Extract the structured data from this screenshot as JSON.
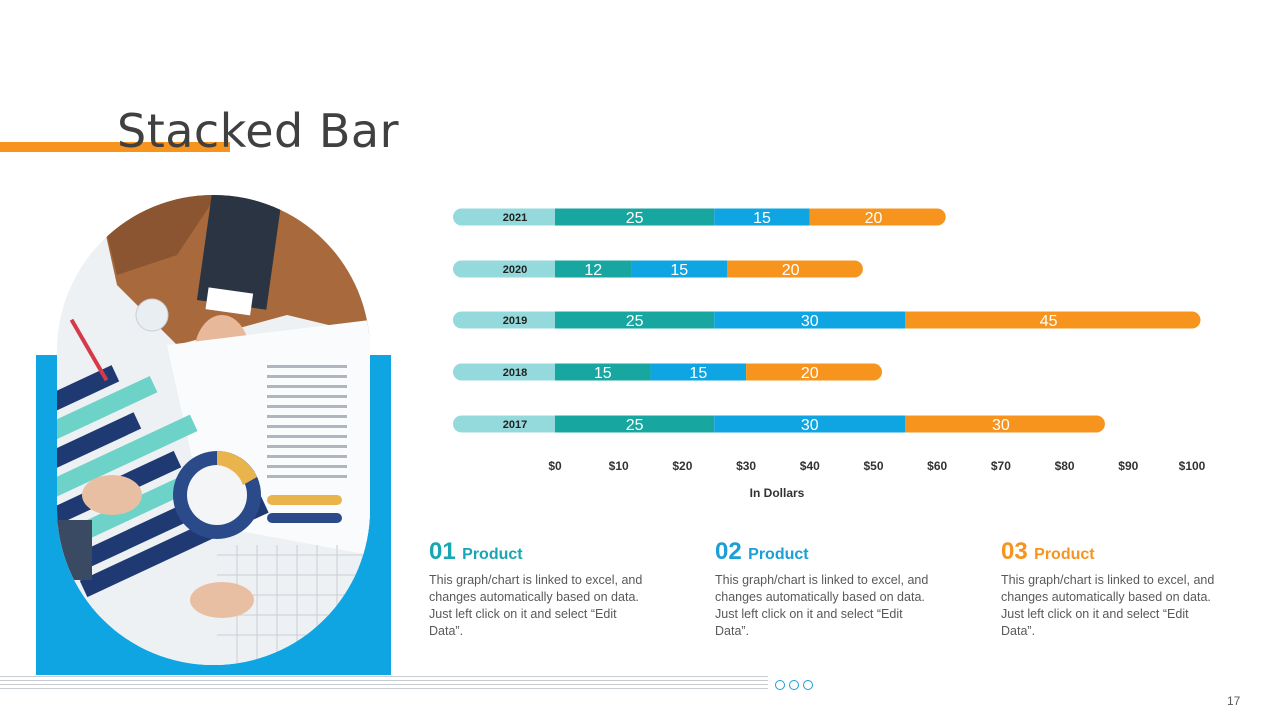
{
  "slide": {
    "title": "Stacked Bar",
    "page_number": "17"
  },
  "colors": {
    "accent_orange": "#F7941D",
    "series_1": "#17A7A0",
    "series_2": "#0EA5E2",
    "series_3": "#F7941D",
    "year_label_bg": "#94D9DC",
    "panel_blue": "#0EA5E2"
  },
  "chart_data": {
    "type": "bar",
    "orientation": "horizontal",
    "stacked": true,
    "categories": [
      "2021",
      "2020",
      "2019",
      "2018",
      "2017"
    ],
    "series": [
      {
        "values": [
          25,
          12,
          25,
          15,
          25
        ]
      },
      {
        "values": [
          15,
          15,
          30,
          15,
          30
        ]
      },
      {
        "values": [
          20,
          20,
          45,
          20,
          30
        ]
      }
    ],
    "xlabel": "In Dollars",
    "xlim": [
      0,
      100
    ],
    "x_ticks": [
      "$0",
      "$10",
      "$20",
      "$30",
      "$40",
      "$50",
      "$60",
      "$70",
      "$80",
      "$90",
      "$100"
    ],
    "grid": false,
    "legend": "none"
  },
  "products": [
    {
      "number": "01",
      "label": "Product",
      "description": "This graph/chart is linked to excel, and changes automatically based on data. Just left click on it and select “Edit Data”."
    },
    {
      "number": "02",
      "label": "Product",
      "description": "This graph/chart is linked to excel, and changes automatically based on data. Just left click on it and select “Edit Data”."
    },
    {
      "number": "03",
      "label": "Product",
      "description": "This graph/chart is linked to excel, and changes automatically based on data. Just left click on it and select “Edit Data”."
    }
  ]
}
